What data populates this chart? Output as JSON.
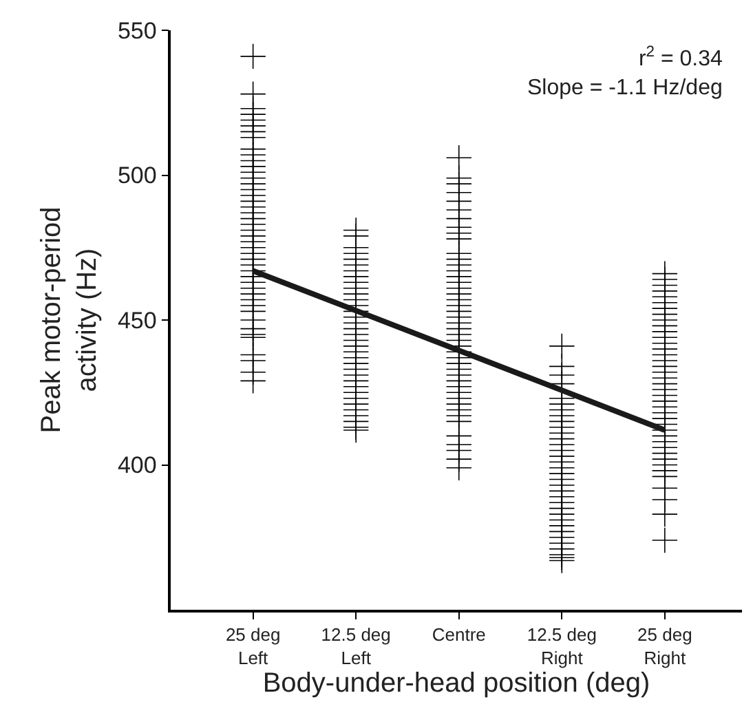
{
  "chart_data": {
    "type": "scatter",
    "xlabel": "Body-under-head position (deg)",
    "ylabel": "Peak motor-period\nactivity (Hz)",
    "annotations": [
      "r$^{2}$ = 0.34\nSlope = -1.1 Hz/deg"
    ],
    "categories": [
      "25 deg\nLeft",
      "12.5 deg\nLeft",
      "Centre",
      "12.5 deg\nRight",
      "25 deg\nRight"
    ],
    "ylim": [
      350,
      550
    ],
    "yticks": [
      400,
      450,
      500,
      550
    ],
    "series": [
      {
        "marker": "cross",
        "color": "#000000",
        "x": [
          "25 deg\nLeft",
          "25 deg\nLeft",
          "25 deg\nLeft",
          "25 deg\nLeft",
          "25 deg\nLeft",
          "25 deg\nLeft",
          "25 deg\nLeft",
          "25 deg\nLeft",
          "25 deg\nLeft",
          "25 deg\nLeft",
          "25 deg\nLeft",
          "25 deg\nLeft",
          "25 deg\nLeft",
          "25 deg\nLeft",
          "25 deg\nLeft",
          "25 deg\nLeft",
          "25 deg\nLeft",
          "25 deg\nLeft",
          "25 deg\nLeft",
          "25 deg\nLeft",
          "25 deg\nLeft",
          "25 deg\nLeft",
          "25 deg\nLeft",
          "25 deg\nLeft",
          "25 deg\nLeft",
          "25 deg\nLeft",
          "25 deg\nLeft",
          "25 deg\nLeft",
          "25 deg\nLeft",
          "25 deg\nLeft",
          "25 deg\nLeft",
          "25 deg\nLeft",
          "25 deg\nLeft",
          "25 deg\nLeft",
          "25 deg\nLeft",
          "25 deg\nLeft",
          "25 deg\nLeft",
          "25 deg\nLeft",
          "25 deg\nLeft",
          "25 deg\nLeft",
          "25 deg\nLeft",
          "25 deg\nLeft",
          "25 deg\nLeft",
          "25 deg\nLeft",
          "25 deg\nLeft",
          "12.5 deg\nLeft",
          "12.5 deg\nLeft",
          "12.5 deg\nLeft",
          "12.5 deg\nLeft",
          "12.5 deg\nLeft",
          "12.5 deg\nLeft",
          "12.5 deg\nLeft",
          "12.5 deg\nLeft",
          "12.5 deg\nLeft",
          "12.5 deg\nLeft",
          "12.5 deg\nLeft",
          "12.5 deg\nLeft",
          "12.5 deg\nLeft",
          "12.5 deg\nLeft",
          "12.5 deg\nLeft",
          "12.5 deg\nLeft",
          "12.5 deg\nLeft",
          "12.5 deg\nLeft",
          "12.5 deg\nLeft",
          "12.5 deg\nLeft",
          "12.5 deg\nLeft",
          "12.5 deg\nLeft",
          "12.5 deg\nLeft",
          "12.5 deg\nLeft",
          "12.5 deg\nLeft",
          "12.5 deg\nLeft",
          "12.5 deg\nLeft",
          "12.5 deg\nLeft",
          "12.5 deg\nLeft",
          "12.5 deg\nLeft",
          "12.5 deg\nLeft",
          "12.5 deg\nLeft",
          "12.5 deg\nLeft",
          "12.5 deg\nLeft",
          "12.5 deg\nLeft",
          "Centre",
          "Centre",
          "Centre",
          "Centre",
          "Centre",
          "Centre",
          "Centre",
          "Centre",
          "Centre",
          "Centre",
          "Centre",
          "Centre",
          "Centre",
          "Centre",
          "Centre",
          "Centre",
          "Centre",
          "Centre",
          "Centre",
          "Centre",
          "Centre",
          "Centre",
          "Centre",
          "Centre",
          "Centre",
          "Centre",
          "Centre",
          "Centre",
          "Centre",
          "Centre",
          "Centre",
          "Centre",
          "Centre",
          "Centre",
          "Centre",
          "Centre",
          "Centre",
          "Centre",
          "Centre",
          "Centre",
          "Centre",
          "Centre",
          "Centre",
          "Centre",
          "Centre",
          "12.5 deg\nRight",
          "12.5 deg\nRight",
          "12.5 deg\nRight",
          "12.5 deg\nRight",
          "12.5 deg\nRight",
          "12.5 deg\nRight",
          "12.5 deg\nRight",
          "12.5 deg\nRight",
          "12.5 deg\nRight",
          "12.5 deg\nRight",
          "12.5 deg\nRight",
          "12.5 deg\nRight",
          "12.5 deg\nRight",
          "12.5 deg\nRight",
          "12.5 deg\nRight",
          "12.5 deg\nRight",
          "12.5 deg\nRight",
          "12.5 deg\nRight",
          "12.5 deg\nRight",
          "12.5 deg\nRight",
          "12.5 deg\nRight",
          "12.5 deg\nRight",
          "12.5 deg\nRight",
          "12.5 deg\nRight",
          "12.5 deg\nRight",
          "12.5 deg\nRight",
          "12.5 deg\nRight",
          "12.5 deg\nRight",
          "12.5 deg\nRight",
          "12.5 deg\nRight",
          "12.5 deg\nRight",
          "12.5 deg\nRight",
          "12.5 deg\nRight",
          "12.5 deg\nRight",
          "25 deg\nRight",
          "25 deg\nRight",
          "25 deg\nRight",
          "25 deg\nRight",
          "25 deg\nRight",
          "25 deg\nRight",
          "25 deg\nRight",
          "25 deg\nRight",
          "25 deg\nRight",
          "25 deg\nRight",
          "25 deg\nRight",
          "25 deg\nRight",
          "25 deg\nRight",
          "25 deg\nRight",
          "25 deg\nRight",
          "25 deg\nRight",
          "25 deg\nRight",
          "25 deg\nRight",
          "25 deg\nRight",
          "25 deg\nRight",
          "25 deg\nRight",
          "25 deg\nRight",
          "25 deg\nRight",
          "25 deg\nRight",
          "25 deg\nRight",
          "25 deg\nRight",
          "25 deg\nRight",
          "25 deg\nRight",
          "25 deg\nRight",
          "25 deg\nRight",
          "25 deg\nRight",
          "25 deg\nRight",
          "25 deg\nRight",
          "25 deg\nRight",
          "25 deg\nRight",
          "25 deg\nRight",
          "25 deg\nRight",
          "25 deg\nRight",
          "25 deg\nRight",
          "25 deg\nRight"
        ],
        "values": [
          541,
          528,
          523,
          521,
          519,
          517,
          515,
          513,
          509,
          507,
          505,
          503,
          501,
          499,
          497,
          495,
          493,
          491,
          489,
          487,
          485,
          483,
          481,
          479,
          477,
          475,
          473,
          471,
          469,
          467,
          465,
          463,
          461,
          459,
          457,
          455,
          453,
          450,
          447,
          445,
          444,
          438,
          436,
          432,
          429,
          481,
          479,
          475,
          473,
          471,
          469,
          467,
          465,
          463,
          461,
          459,
          457,
          455,
          453,
          451,
          449,
          447,
          445,
          443,
          441,
          439,
          437,
          435,
          433,
          431,
          429,
          427,
          425,
          423,
          421,
          419,
          417,
          415,
          413,
          412,
          506,
          499,
          497,
          494,
          491,
          488,
          485,
          482,
          480,
          478,
          473,
          471,
          469,
          467,
          465,
          463,
          461,
          459,
          457,
          455,
          453,
          451,
          449,
          447,
          445,
          443,
          441,
          439,
          437,
          435,
          433,
          431,
          429,
          427,
          425,
          423,
          421,
          419,
          417,
          415,
          410,
          407,
          405,
          402,
          399,
          441,
          434,
          431,
          428,
          423,
          421,
          419,
          417,
          415,
          413,
          411,
          409,
          407,
          405,
          403,
          401,
          399,
          397,
          395,
          393,
          391,
          389,
          387,
          385,
          383,
          381,
          379,
          377,
          375,
          373,
          371,
          369,
          368,
          367,
          466,
          464,
          462,
          460,
          458,
          456,
          454,
          452,
          450,
          448,
          446,
          444,
          442,
          440,
          438,
          436,
          434,
          432,
          430,
          428,
          426,
          424,
          422,
          420,
          418,
          416,
          414,
          412,
          410,
          408,
          406,
          404,
          402,
          400,
          398,
          396,
          392,
          388,
          383,
          374
        ]
      },
      {
        "type": "line",
        "color": "#1a1a1a",
        "x": [
          "25 deg\nLeft",
          "25 deg\nRight"
        ],
        "values": [
          467,
          412
        ]
      }
    ]
  }
}
